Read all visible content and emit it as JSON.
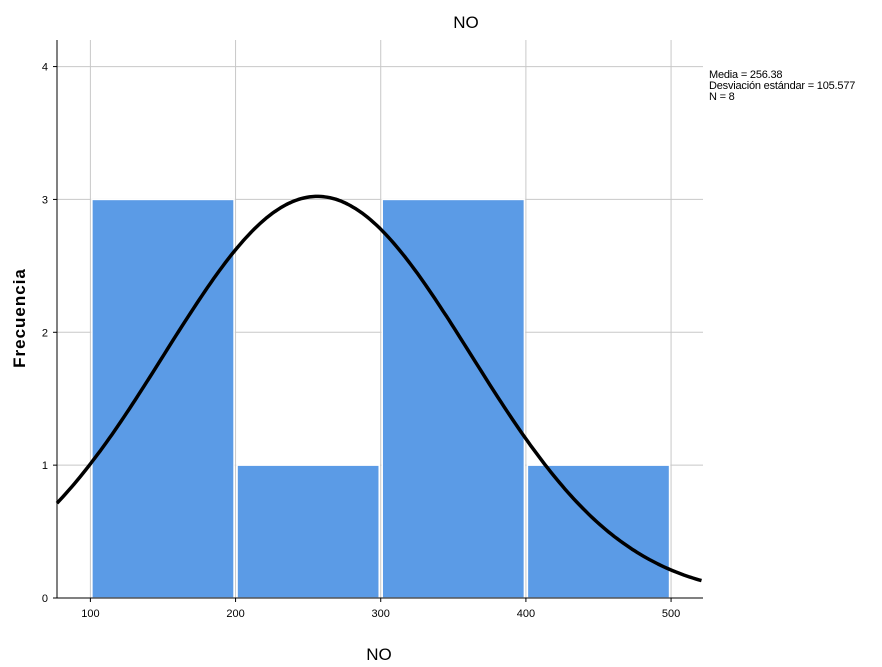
{
  "chart_data": {
    "type": "bar",
    "title": "NO",
    "xlabel": "NO",
    "ylabel": "Frecuencia",
    "bins": [
      {
        "start": 100,
        "end": 200,
        "value": 3
      },
      {
        "start": 200,
        "end": 300,
        "value": 1
      },
      {
        "start": 300,
        "end": 400,
        "value": 3
      },
      {
        "start": 400,
        "end": 500,
        "value": 1
      }
    ],
    "xlim": [
      77,
      522
    ],
    "ylim": [
      0,
      4.2
    ],
    "x_ticks": [
      100,
      200,
      300,
      400,
      500
    ],
    "y_ticks": [
      0,
      1,
      2,
      3,
      4
    ],
    "grid": true,
    "normal_curve": {
      "mean": 256.38,
      "std": 105.577,
      "n": 8,
      "bin_width": 100
    },
    "bar_color": "#5b9be6",
    "curve_color": "#000000",
    "stats": {
      "mean_label": "Media = 256.38",
      "std_label": "Desviación estándar = 105.577",
      "n_label": "N = 8"
    }
  }
}
